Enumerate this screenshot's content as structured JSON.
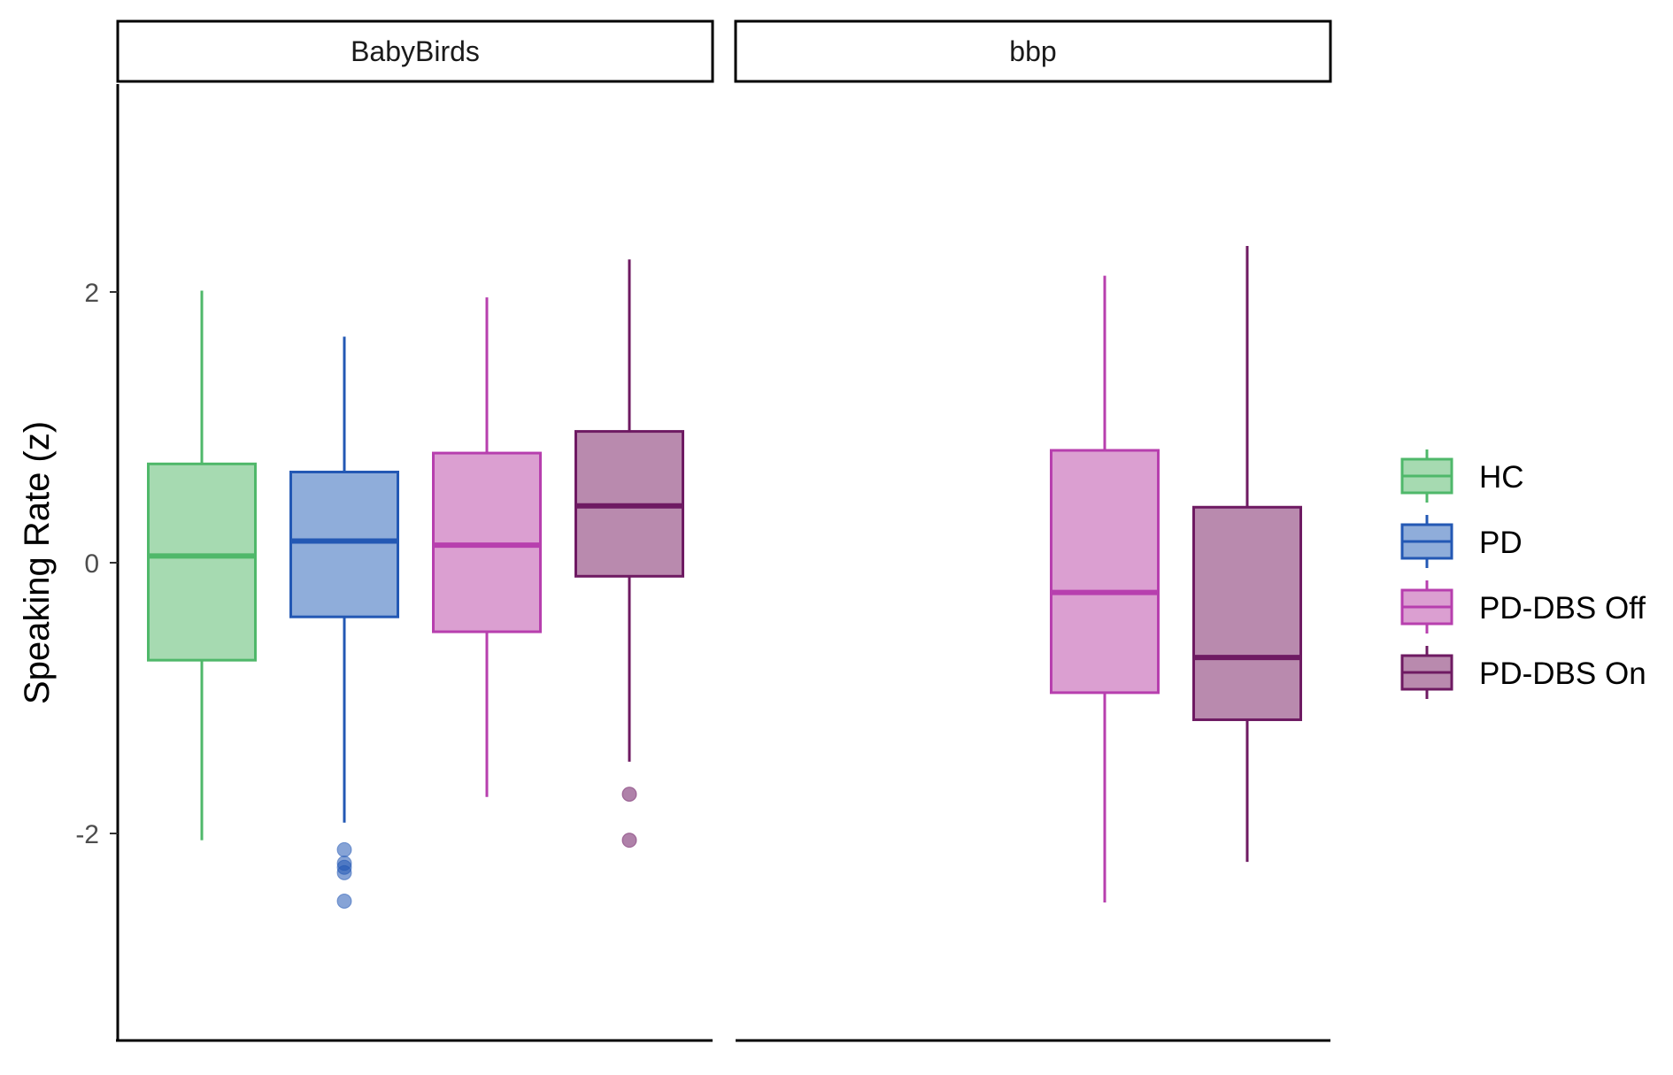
{
  "chart_data": {
    "type": "boxplot",
    "ylabel": "Speaking Rate (z)",
    "xlabel": "",
    "ylim": [
      -3.5,
      3.5
    ],
    "yticks": [
      -2,
      0,
      2
    ],
    "grid": false,
    "legend_position": "right",
    "categories": [
      "HC",
      "PD",
      "PD-DBS Off",
      "PD-DBS On"
    ],
    "colors": {
      "HC": {
        "line": "#4fb86a",
        "fill": "#a6dab1"
      },
      "PD": {
        "line": "#2358b4",
        "fill": "#8fadda"
      },
      "PD-DBS Off": {
        "line": "#b73fae",
        "fill": "#db9fd1"
      },
      "PD-DBS On": {
        "line": "#6e1a62",
        "fill": "#b98aae"
      }
    },
    "panels": [
      {
        "name": "BabyBirds",
        "boxes": [
          {
            "group": "HC",
            "lower_whisker": -2.05,
            "q1": -0.72,
            "median": 0.05,
            "q3": 0.73,
            "upper_whisker": 2.01,
            "outliers": []
          },
          {
            "group": "PD",
            "lower_whisker": -1.92,
            "q1": -0.4,
            "median": 0.16,
            "q3": 0.67,
            "upper_whisker": 1.67,
            "outliers": [
              -2.12,
              -2.22,
              -2.25,
              -2.29,
              -2.5
            ]
          },
          {
            "group": "PD-DBS Off",
            "lower_whisker": -1.73,
            "q1": -0.51,
            "median": 0.13,
            "q3": 0.81,
            "upper_whisker": 1.96,
            "outliers": []
          },
          {
            "group": "PD-DBS On",
            "lower_whisker": -1.47,
            "q1": -0.1,
            "median": 0.42,
            "q3": 0.97,
            "upper_whisker": 2.24,
            "outliers": [
              -1.71,
              -2.05
            ]
          }
        ]
      },
      {
        "name": "bbp",
        "boxes": [
          {
            "group": "PD-DBS Off",
            "lower_whisker": -2.51,
            "q1": -0.96,
            "median": -0.22,
            "q3": 0.83,
            "upper_whisker": 2.12,
            "outliers": []
          },
          {
            "group": "PD-DBS On",
            "lower_whisker": -2.21,
            "q1": -1.16,
            "median": -0.7,
            "q3": 0.41,
            "upper_whisker": 2.34,
            "outliers": []
          }
        ]
      }
    ]
  },
  "legend": {
    "items": [
      {
        "label": "HC"
      },
      {
        "label": "PD"
      },
      {
        "label": "PD-DBS Off"
      },
      {
        "label": "PD-DBS On"
      }
    ]
  }
}
